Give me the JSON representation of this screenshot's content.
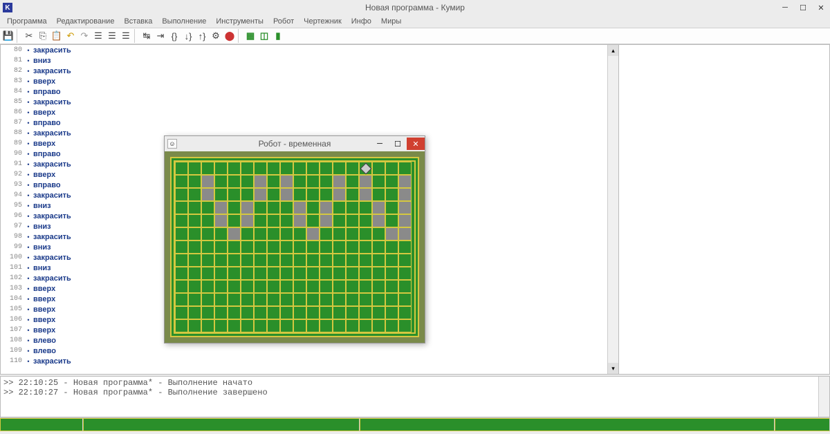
{
  "window": {
    "title": "Новая программа - Кумир",
    "app_icon_letter": "K"
  },
  "menu": [
    "Программа",
    "Редактирование",
    "Вставка",
    "Выполнение",
    "Инструменты",
    "Робот",
    "Чертежник",
    "Инфо",
    "Миры"
  ],
  "code_lines": [
    {
      "n": 80,
      "t": "закрасить"
    },
    {
      "n": 81,
      "t": "вниз"
    },
    {
      "n": 82,
      "t": "закрасить"
    },
    {
      "n": 83,
      "t": "вверх"
    },
    {
      "n": 84,
      "t": "вправо"
    },
    {
      "n": 85,
      "t": "закрасить"
    },
    {
      "n": 86,
      "t": "вверх"
    },
    {
      "n": 87,
      "t": "вправо"
    },
    {
      "n": 88,
      "t": "закрасить"
    },
    {
      "n": 89,
      "t": "вверх"
    },
    {
      "n": 90,
      "t": "вправо"
    },
    {
      "n": 91,
      "t": "закрасить"
    },
    {
      "n": 92,
      "t": "вверх"
    },
    {
      "n": 93,
      "t": "вправо"
    },
    {
      "n": 94,
      "t": "закрасить"
    },
    {
      "n": 95,
      "t": "вниз"
    },
    {
      "n": 96,
      "t": "закрасить"
    },
    {
      "n": 97,
      "t": "вниз"
    },
    {
      "n": 98,
      "t": "закрасить"
    },
    {
      "n": 99,
      "t": "вниз"
    },
    {
      "n": 100,
      "t": "закрасить"
    },
    {
      "n": 101,
      "t": "вниз"
    },
    {
      "n": 102,
      "t": "закрасить"
    },
    {
      "n": 103,
      "t": "вверх"
    },
    {
      "n": 104,
      "t": "вверх"
    },
    {
      "n": 105,
      "t": "вверх"
    },
    {
      "n": 106,
      "t": "вверх"
    },
    {
      "n": 107,
      "t": "вверх"
    },
    {
      "n": 108,
      "t": "влево"
    },
    {
      "n": 109,
      "t": "влево"
    },
    {
      "n": 110,
      "t": "закрасить"
    }
  ],
  "console": [
    ">> 22:10:25 - Новая программа* - Выполнение начато",
    ">> 22:10:27 - Новая программа* - Выполнение завершено"
  ],
  "robot_window": {
    "title": "Робот - временная",
    "grid": {
      "cols": 18,
      "rows": 13
    },
    "robot_pos": {
      "row": 0,
      "col": 14
    },
    "painted_cells": [
      [
        1,
        2
      ],
      [
        1,
        6
      ],
      [
        1,
        8
      ],
      [
        1,
        12
      ],
      [
        1,
        14
      ],
      [
        1,
        17
      ],
      [
        2,
        2
      ],
      [
        2,
        6
      ],
      [
        2,
        8
      ],
      [
        2,
        12
      ],
      [
        2,
        14
      ],
      [
        2,
        17
      ],
      [
        3,
        3
      ],
      [
        3,
        5
      ],
      [
        3,
        9
      ],
      [
        3,
        11
      ],
      [
        3,
        15
      ],
      [
        3,
        17
      ],
      [
        4,
        3
      ],
      [
        4,
        5
      ],
      [
        4,
        9
      ],
      [
        4,
        11
      ],
      [
        4,
        15
      ],
      [
        4,
        17
      ],
      [
        5,
        4
      ],
      [
        5,
        10
      ],
      [
        5,
        16
      ],
      [
        5,
        17
      ]
    ],
    "colors": {
      "bg": "#2a8f2a",
      "border": "#d4c840",
      "painted": "#8a8a8a",
      "wrap": "#7a8a4a"
    }
  }
}
